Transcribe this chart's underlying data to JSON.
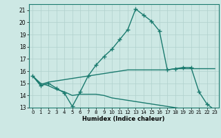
{
  "line1_x": [
    0,
    1,
    2,
    3,
    4,
    5,
    6,
    7,
    8,
    9,
    10,
    11,
    12,
    13,
    14,
    15,
    16,
    17,
    18,
    19,
    20,
    21,
    22,
    23
  ],
  "line1_y": [
    15.6,
    14.8,
    15.0,
    14.6,
    14.2,
    13.1,
    14.3,
    15.6,
    16.5,
    17.2,
    17.8,
    18.6,
    19.4,
    21.1,
    20.6,
    20.1,
    19.3,
    16.1,
    16.2,
    16.3,
    16.3,
    14.3,
    13.3,
    12.8
  ],
  "line2_x": [
    0,
    1,
    2,
    3,
    4,
    5,
    6,
    7,
    8,
    9,
    10,
    11,
    12,
    13,
    14,
    15,
    16,
    17,
    18,
    19,
    20,
    21,
    22,
    23
  ],
  "line2_y": [
    15.6,
    14.9,
    15.1,
    15.2,
    15.3,
    15.4,
    15.5,
    15.6,
    15.7,
    15.8,
    15.9,
    16.0,
    16.1,
    16.1,
    16.1,
    16.1,
    16.1,
    16.1,
    16.2,
    16.2,
    16.2,
    16.2,
    16.2,
    16.2
  ],
  "line3_x": [
    0,
    1,
    2,
    3,
    4,
    5,
    6,
    7,
    8,
    9,
    10,
    11,
    12,
    13,
    14,
    15,
    16,
    17,
    18,
    19,
    20,
    21,
    22,
    23
  ],
  "line3_y": [
    15.6,
    15.0,
    14.8,
    14.5,
    14.3,
    14.0,
    14.1,
    14.1,
    14.1,
    14.0,
    13.8,
    13.7,
    13.6,
    13.5,
    13.4,
    13.3,
    13.2,
    13.1,
    13.0,
    12.9,
    12.9,
    12.9,
    12.9,
    12.8
  ],
  "color": "#1a7a6e",
  "bg_color": "#cde8e4",
  "grid_color": "#b0d0cc",
  "xlabel": "Humidex (Indice chaleur)",
  "ylim": [
    13,
    21.5
  ],
  "xlim": [
    -0.5,
    23.5
  ],
  "yticks": [
    13,
    14,
    15,
    16,
    17,
    18,
    19,
    20,
    21
  ],
  "xticks": [
    0,
    1,
    2,
    3,
    4,
    5,
    6,
    7,
    8,
    9,
    10,
    11,
    12,
    13,
    14,
    15,
    16,
    17,
    18,
    19,
    20,
    21,
    22,
    23
  ],
  "xtick_labels": [
    "0",
    "1",
    "2",
    "3",
    "4",
    "5",
    "6",
    "7",
    "8",
    "9",
    "10",
    "11",
    "12",
    "13",
    "14",
    "15",
    "16",
    "17",
    "18",
    "19",
    "20",
    "21",
    "22",
    "23"
  ],
  "marker": "+",
  "linewidth": 1.0,
  "markersize": 4
}
